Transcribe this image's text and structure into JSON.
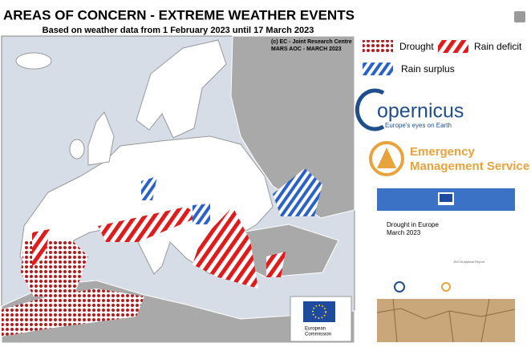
{
  "header": {
    "title": "AREAS OF CONCERN - EXTREME WEATHER EVENTS",
    "subtitle": "Based on weather data from 1 February 2023 until 17 March 2023"
  },
  "map": {
    "credit": [
      "(c) EC - Joint Research Centre",
      "MARS AOC - MARCH 2023"
    ],
    "commission": [
      "European",
      "Commission"
    ]
  },
  "legend": {
    "items": [
      "Drought",
      "Rain deficit",
      "Rain surplus"
    ]
  },
  "logos": {
    "copernicus": "opernicus",
    "copernicus_tagline": "Europe's eyes on Earth",
    "ems": [
      "Emergency",
      "Management Service"
    ]
  },
  "report": {
    "title": "Drought in Europe",
    "date": "March 2023",
    "type": "JDO Analytical Report"
  }
}
